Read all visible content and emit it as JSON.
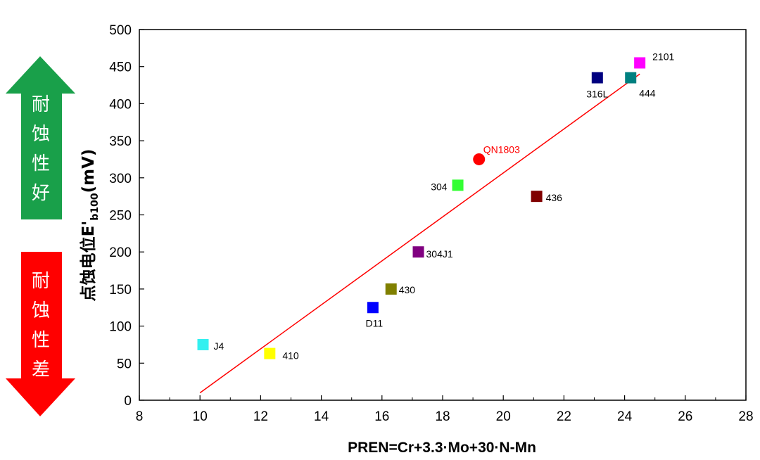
{
  "chart_data": {
    "type": "scatter",
    "xlabel": "PREN=Cr+3.3·Mo+30·N-Mn",
    "ylabel_main": "点蚀电位E'",
    "ylabel_sub": "b100",
    "ylabel_unit": "(mV)",
    "xlim": [
      8,
      28
    ],
    "ylim": [
      0,
      500
    ],
    "xticks": [
      "8",
      "10",
      "12",
      "14",
      "16",
      "18",
      "20",
      "22",
      "24",
      "26",
      "28"
    ],
    "yticks": [
      "0",
      "50",
      "100",
      "150",
      "200",
      "250",
      "300",
      "350",
      "400",
      "450",
      "500"
    ],
    "grid": false,
    "points": [
      {
        "label": "J4",
        "x": 10.1,
        "y": 75,
        "color": "#33f0f0",
        "marker": "square"
      },
      {
        "label": "410",
        "x": 12.3,
        "y": 63,
        "color": "#ffff00",
        "marker": "square"
      },
      {
        "label": "D11",
        "x": 15.7,
        "y": 125,
        "color": "#0000ff",
        "marker": "square"
      },
      {
        "label": "430",
        "x": 16.3,
        "y": 150,
        "color": "#808000",
        "marker": "square"
      },
      {
        "label": "304J1",
        "x": 17.2,
        "y": 200,
        "color": "#800080",
        "marker": "square"
      },
      {
        "label": "304",
        "x": 18.5,
        "y": 290,
        "color": "#33ff33",
        "marker": "square"
      },
      {
        "label": "QN1803",
        "x": 19.2,
        "y": 325,
        "color": "#ff0000",
        "marker": "circle"
      },
      {
        "label": "436",
        "x": 21.1,
        "y": 275,
        "color": "#800000",
        "marker": "square"
      },
      {
        "label": "316L",
        "x": 23.1,
        "y": 435,
        "color": "#000080",
        "marker": "square"
      },
      {
        "label": "444",
        "x": 24.2,
        "y": 435,
        "color": "#008080",
        "marker": "square"
      },
      {
        "label": "2101",
        "x": 24.5,
        "y": 455,
        "color": "#ff00ff",
        "marker": "square"
      }
    ],
    "trendline": {
      "x": [
        10,
        24.5
      ],
      "y": [
        10,
        440
      ],
      "color": "#ff0000"
    }
  },
  "side_labels": {
    "good": [
      "耐",
      "蚀",
      "性",
      "好"
    ],
    "bad": [
      "耐",
      "蚀",
      "性",
      "差"
    ],
    "good_color": "#19a04a",
    "bad_color": "#ff0000"
  }
}
